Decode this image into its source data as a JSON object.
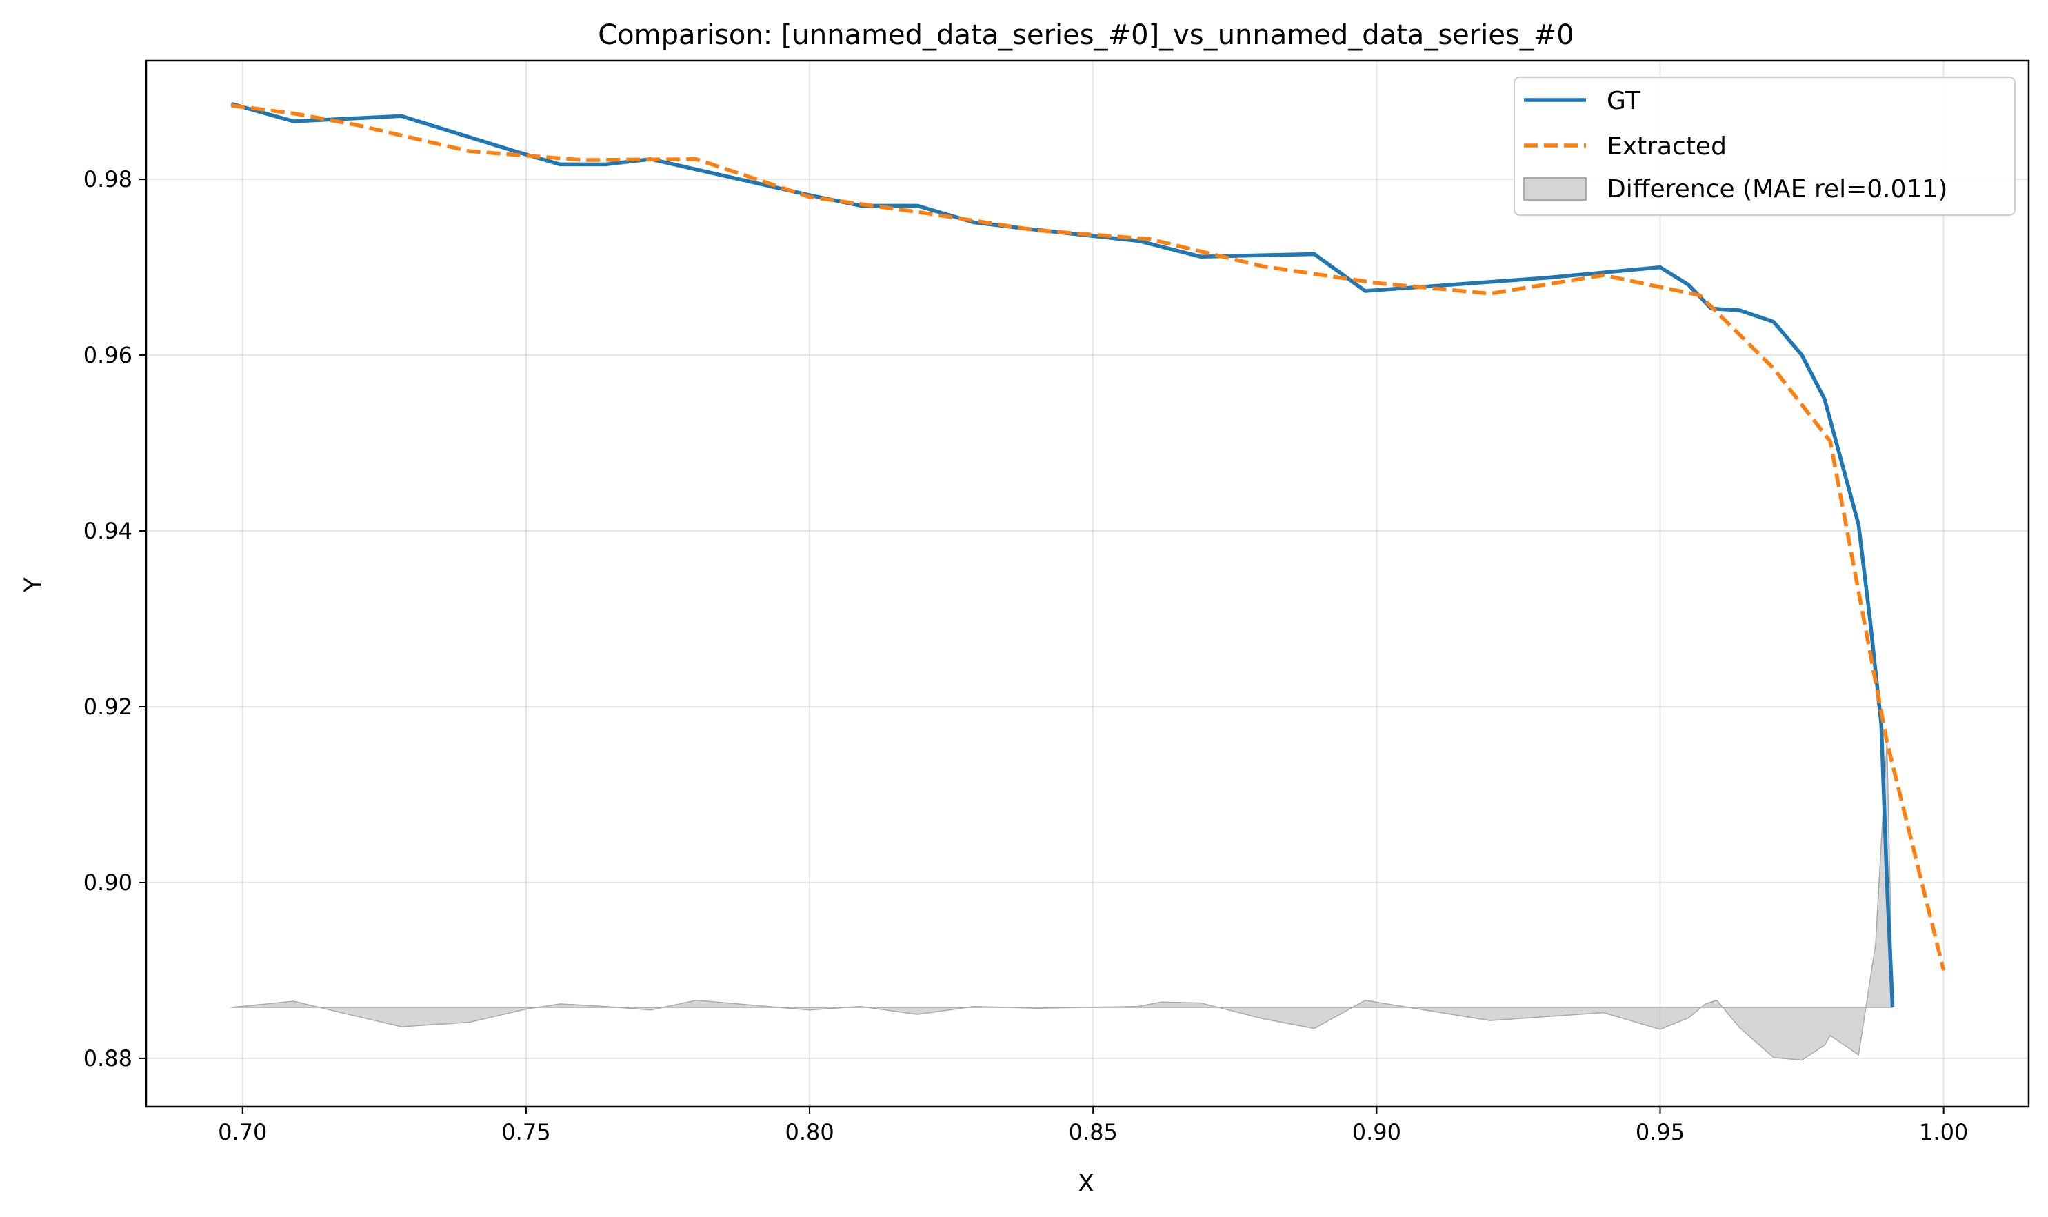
{
  "chart_data": {
    "type": "line",
    "title": "Comparison: [unnamed_data_series_#0]_vs_unnamed_data_series_#0",
    "xlabel": "X",
    "ylabel": "Y",
    "xlim": [
      0.683,
      1.015
    ],
    "ylim": [
      0.8745,
      0.9935
    ],
    "grid": true,
    "legend_position": "top-right",
    "x_ticks": [
      {
        "value": 0.7,
        "label": "0.70"
      },
      {
        "value": 0.75,
        "label": "0.75"
      },
      {
        "value": 0.8,
        "label": "0.80"
      },
      {
        "value": 0.85,
        "label": "0.85"
      },
      {
        "value": 0.9,
        "label": "0.90"
      },
      {
        "value": 0.95,
        "label": "0.95"
      },
      {
        "value": 1.0,
        "label": "1.00"
      }
    ],
    "y_ticks": [
      {
        "value": 0.88,
        "label": "0.88"
      },
      {
        "value": 0.9,
        "label": "0.90"
      },
      {
        "value": 0.92,
        "label": "0.92"
      },
      {
        "value": 0.94,
        "label": "0.94"
      },
      {
        "value": 0.96,
        "label": "0.96"
      },
      {
        "value": 0.98,
        "label": "0.98"
      }
    ],
    "series": [
      {
        "name": "GT",
        "color": "#1f77b4",
        "style": "solid",
        "points": [
          [
            0.698,
            0.9886
          ],
          [
            0.709,
            0.9866
          ],
          [
            0.728,
            0.9872
          ],
          [
            0.748,
            0.9832
          ],
          [
            0.756,
            0.9817
          ],
          [
            0.764,
            0.9817
          ],
          [
            0.772,
            0.9823
          ],
          [
            0.8,
            0.9782
          ],
          [
            0.809,
            0.977
          ],
          [
            0.819,
            0.977
          ],
          [
            0.829,
            0.9751
          ],
          [
            0.838,
            0.9744
          ],
          [
            0.858,
            0.973
          ],
          [
            0.869,
            0.9712
          ],
          [
            0.889,
            0.9715
          ],
          [
            0.898,
            0.9673
          ],
          [
            0.93,
            0.9688
          ],
          [
            0.95,
            0.97
          ],
          [
            0.955,
            0.968
          ],
          [
            0.959,
            0.9653
          ],
          [
            0.964,
            0.9651
          ],
          [
            0.97,
            0.9638
          ],
          [
            0.975,
            0.96
          ],
          [
            0.979,
            0.955
          ],
          [
            0.985,
            0.9407
          ],
          [
            0.987,
            0.93
          ],
          [
            0.989,
            0.918
          ],
          [
            0.99,
            0.9
          ],
          [
            0.991,
            0.8858
          ]
        ]
      },
      {
        "name": "Extracted",
        "color": "#ff7f0e",
        "style": "dashed",
        "points": [
          [
            0.698,
            0.9884
          ],
          [
            0.709,
            0.9875
          ],
          [
            0.72,
            0.9862
          ],
          [
            0.74,
            0.9832
          ],
          [
            0.76,
            0.9822
          ],
          [
            0.78,
            0.9823
          ],
          [
            0.8,
            0.978
          ],
          [
            0.82,
            0.9762
          ],
          [
            0.84,
            0.9742
          ],
          [
            0.86,
            0.9732
          ],
          [
            0.88,
            0.9701
          ],
          [
            0.9,
            0.9682
          ],
          [
            0.92,
            0.967
          ],
          [
            0.94,
            0.9691
          ],
          [
            0.957,
            0.9668
          ],
          [
            0.97,
            0.9585
          ],
          [
            0.98,
            0.9502
          ],
          [
            0.99,
            0.916
          ],
          [
            1.0,
            0.89
          ]
        ]
      }
    ],
    "difference": {
      "name": "Difference (MAE rel=0.011)",
      "color": "#bbbbbb",
      "baseline": 0.8858,
      "points": [
        [
          0.698,
          0.8858
        ],
        [
          0.709,
          0.8865
        ],
        [
          0.72,
          0.8848
        ],
        [
          0.728,
          0.8836
        ],
        [
          0.74,
          0.8841
        ],
        [
          0.75,
          0.8856
        ],
        [
          0.756,
          0.8862
        ],
        [
          0.764,
          0.8859
        ],
        [
          0.772,
          0.8855
        ],
        [
          0.78,
          0.8866
        ],
        [
          0.8,
          0.8855
        ],
        [
          0.809,
          0.8859
        ],
        [
          0.819,
          0.885
        ],
        [
          0.829,
          0.8859
        ],
        [
          0.84,
          0.8857
        ],
        [
          0.858,
          0.8859
        ],
        [
          0.862,
          0.8864
        ],
        [
          0.869,
          0.8863
        ],
        [
          0.88,
          0.8845
        ],
        [
          0.889,
          0.8834
        ],
        [
          0.898,
          0.8866
        ],
        [
          0.92,
          0.8843
        ],
        [
          0.94,
          0.8852
        ],
        [
          0.95,
          0.8833
        ],
        [
          0.955,
          0.8846
        ],
        [
          0.958,
          0.8862
        ],
        [
          0.96,
          0.8866
        ],
        [
          0.964,
          0.8835
        ],
        [
          0.97,
          0.8801
        ],
        [
          0.975,
          0.8798
        ],
        [
          0.979,
          0.8815
        ],
        [
          0.98,
          0.8826
        ],
        [
          0.985,
          0.8804
        ],
        [
          0.988,
          0.893
        ],
        [
          0.99,
          0.916
        ],
        [
          0.991,
          0.8858
        ]
      ]
    }
  }
}
